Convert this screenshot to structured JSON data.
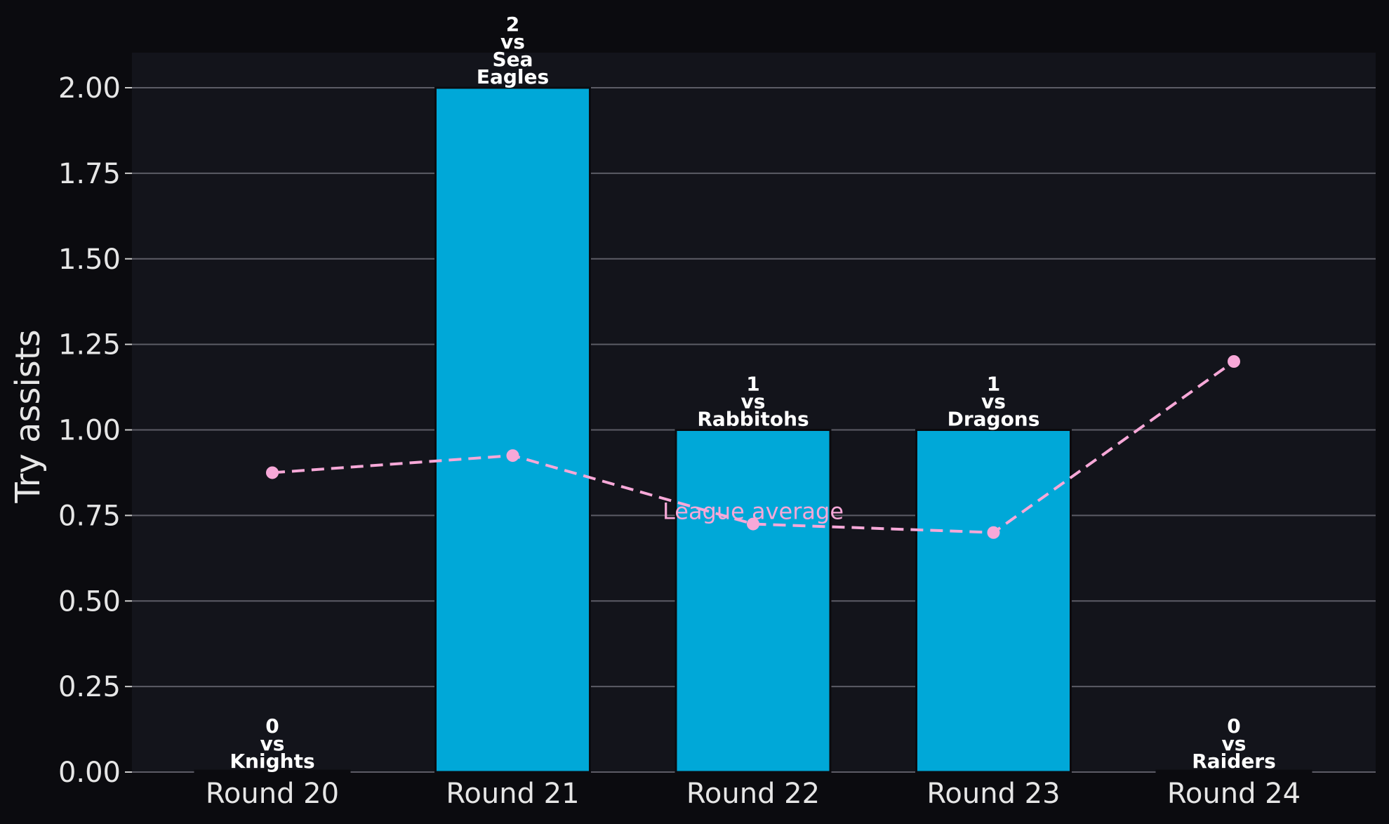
{
  "chart_data": {
    "type": "bar",
    "ylabel": "Try assists",
    "xlabel": "",
    "ylim": [
      0,
      2.1
    ],
    "yticks": [
      "0.00",
      "0.25",
      "0.50",
      "0.75",
      "1.00",
      "1.25",
      "1.50",
      "1.75",
      "2.00"
    ],
    "grid": "horizontal",
    "categories": [
      "Round 20",
      "Round 21",
      "Round 22",
      "Round 23",
      "Round 24"
    ],
    "values": [
      0,
      2,
      1,
      1,
      0
    ],
    "bar_labels": [
      [
        "0",
        "vs",
        "Knights"
      ],
      [
        "2",
        "vs",
        "Sea",
        "Eagles"
      ],
      [
        "1",
        "vs",
        "Rabbitohs"
      ],
      [
        "1",
        "vs",
        "Dragons"
      ],
      [
        "0",
        "vs",
        "Raiders"
      ]
    ],
    "line_series": {
      "values": [
        0.875,
        0.925,
        0.725,
        0.7,
        1.2
      ],
      "annotation": "League average"
    },
    "colors": {
      "bar": "#00a8d8",
      "line": "#f7a8d8",
      "background": "#13141b",
      "page": "#0b0b0f",
      "grid": "#5c5c66"
    }
  }
}
